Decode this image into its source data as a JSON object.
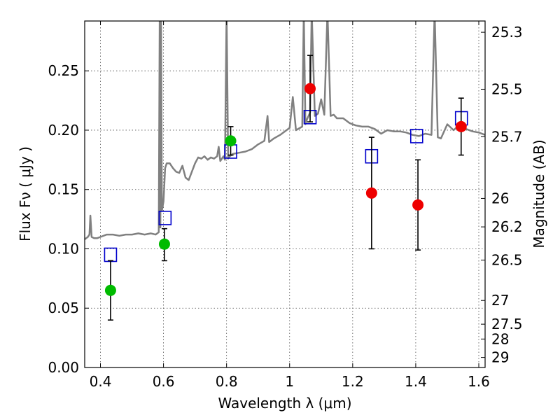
{
  "chart_data": {
    "type": "scatter",
    "xlabel": "Wavelength  λ (μm)",
    "ylabel": "Flux  Fν  ( μJy )",
    "y2label": "Magnitude (AB)",
    "xlim": [
      0.35,
      1.62
    ],
    "ylim": [
      0.0,
      0.292
    ],
    "grid": true,
    "x_ticks": [
      0.4,
      0.6,
      0.8,
      1.0,
      1.2,
      1.4,
      1.6
    ],
    "x_tick_labels": [
      "0.4",
      "0.6",
      "0.8",
      "1",
      "1.2",
      "1.4",
      "1.6"
    ],
    "y_ticks": [
      0.0,
      0.05,
      0.1,
      0.15,
      0.2,
      0.25
    ],
    "y_tick_labels": [
      "0.00",
      "0.05",
      "0.10",
      "0.15",
      "0.20",
      "0.25"
    ],
    "y2_ticks": [
      {
        "label": "25.3",
        "flux": 0.2825
      },
      {
        "label": "25.5",
        "flux": 0.2345
      },
      {
        "label": "25.7",
        "flux": 0.1945
      },
      {
        "label": "26",
        "flux": 0.1425
      },
      {
        "label": "26.2",
        "flux": 0.1185
      },
      {
        "label": "26.5",
        "flux": 0.0905
      },
      {
        "label": "27",
        "flux": 0.0565
      },
      {
        "label": "27.5",
        "flux": 0.0365
      },
      {
        "label": "28",
        "flux": 0.024
      },
      {
        "label": "29",
        "flux": 0.0085
      }
    ],
    "colors": {
      "template": "#808080",
      "green": "#00bb00",
      "red": "#ee0000",
      "model": "#0000cc",
      "errorbar": "#000000"
    },
    "series": [
      {
        "kind": "template-spectrum",
        "x": [
          0.35,
          0.36,
          0.365,
          0.368,
          0.372,
          0.38,
          0.39,
          0.4,
          0.42,
          0.44,
          0.46,
          0.48,
          0.5,
          0.52,
          0.54,
          0.56,
          0.575,
          0.585,
          0.588,
          0.59,
          0.592,
          0.595,
          0.6,
          0.605,
          0.61,
          0.62,
          0.63,
          0.64,
          0.65,
          0.66,
          0.67,
          0.68,
          0.69,
          0.7,
          0.71,
          0.72,
          0.73,
          0.74,
          0.75,
          0.76,
          0.77,
          0.775,
          0.78,
          0.79,
          0.795,
          0.8,
          0.805,
          0.81,
          0.82,
          0.84,
          0.86,
          0.88,
          0.9,
          0.92,
          0.93,
          0.935,
          0.94,
          0.95,
          0.97,
          0.99,
          1.0,
          1.01,
          1.02,
          1.04,
          1.045,
          1.05,
          1.055,
          1.06,
          1.065,
          1.07,
          1.08,
          1.09,
          1.1,
          1.11,
          1.12,
          1.13,
          1.14,
          1.15,
          1.17,
          1.19,
          1.21,
          1.23,
          1.25,
          1.27,
          1.29,
          1.31,
          1.33,
          1.35,
          1.37,
          1.39,
          1.41,
          1.43,
          1.45,
          1.46,
          1.47,
          1.48,
          1.5,
          1.52,
          1.54,
          1.56,
          1.58,
          1.6,
          1.62
        ],
        "y": [
          0.108,
          0.11,
          0.112,
          0.128,
          0.11,
          0.109,
          0.109,
          0.11,
          0.112,
          0.112,
          0.111,
          0.112,
          0.112,
          0.113,
          0.112,
          0.113,
          0.112,
          0.114,
          0.3,
          0.118,
          0.3,
          0.132,
          0.14,
          0.168,
          0.172,
          0.172,
          0.168,
          0.165,
          0.164,
          0.17,
          0.16,
          0.158,
          0.165,
          0.172,
          0.177,
          0.176,
          0.178,
          0.175,
          0.177,
          0.176,
          0.178,
          0.186,
          0.174,
          0.178,
          0.175,
          0.3,
          0.176,
          0.178,
          0.18,
          0.181,
          0.182,
          0.184,
          0.188,
          0.191,
          0.212,
          0.19,
          0.191,
          0.193,
          0.196,
          0.2,
          0.202,
          0.228,
          0.2,
          0.203,
          0.3,
          0.205,
          0.209,
          0.212,
          0.215,
          0.3,
          0.212,
          0.214,
          0.226,
          0.213,
          0.3,
          0.212,
          0.213,
          0.21,
          0.21,
          0.206,
          0.204,
          0.203,
          0.203,
          0.201,
          0.197,
          0.2,
          0.199,
          0.199,
          0.198,
          0.196,
          0.195,
          0.197,
          0.196,
          0.3,
          0.194,
          0.193,
          0.205,
          0.2,
          0.205,
          0.201,
          0.199,
          0.198,
          0.196
        ]
      },
      {
        "kind": "measured-green",
        "x": [
          0.432,
          0.603,
          0.813
        ],
        "y": [
          0.065,
          0.104,
          0.191
        ],
        "err_lo": [
          0.025,
          0.014,
          0.012
        ],
        "err_hi": [
          0.025,
          0.013,
          0.012
        ]
      },
      {
        "kind": "measured-red",
        "x": [
          1.065,
          1.26,
          1.407,
          1.544
        ],
        "y": [
          0.235,
          0.147,
          0.137,
          0.203
        ],
        "err_lo": [
          0.028,
          0.047,
          0.038,
          0.024
        ],
        "err_hi": [
          0.028,
          0.047,
          0.038,
          0.024
        ]
      },
      {
        "kind": "model-squares",
        "x": [
          0.432,
          0.605,
          0.813,
          1.065,
          1.26,
          1.403,
          1.545
        ],
        "y": [
          0.095,
          0.126,
          0.182,
          0.211,
          0.178,
          0.195,
          0.21
        ]
      }
    ]
  }
}
